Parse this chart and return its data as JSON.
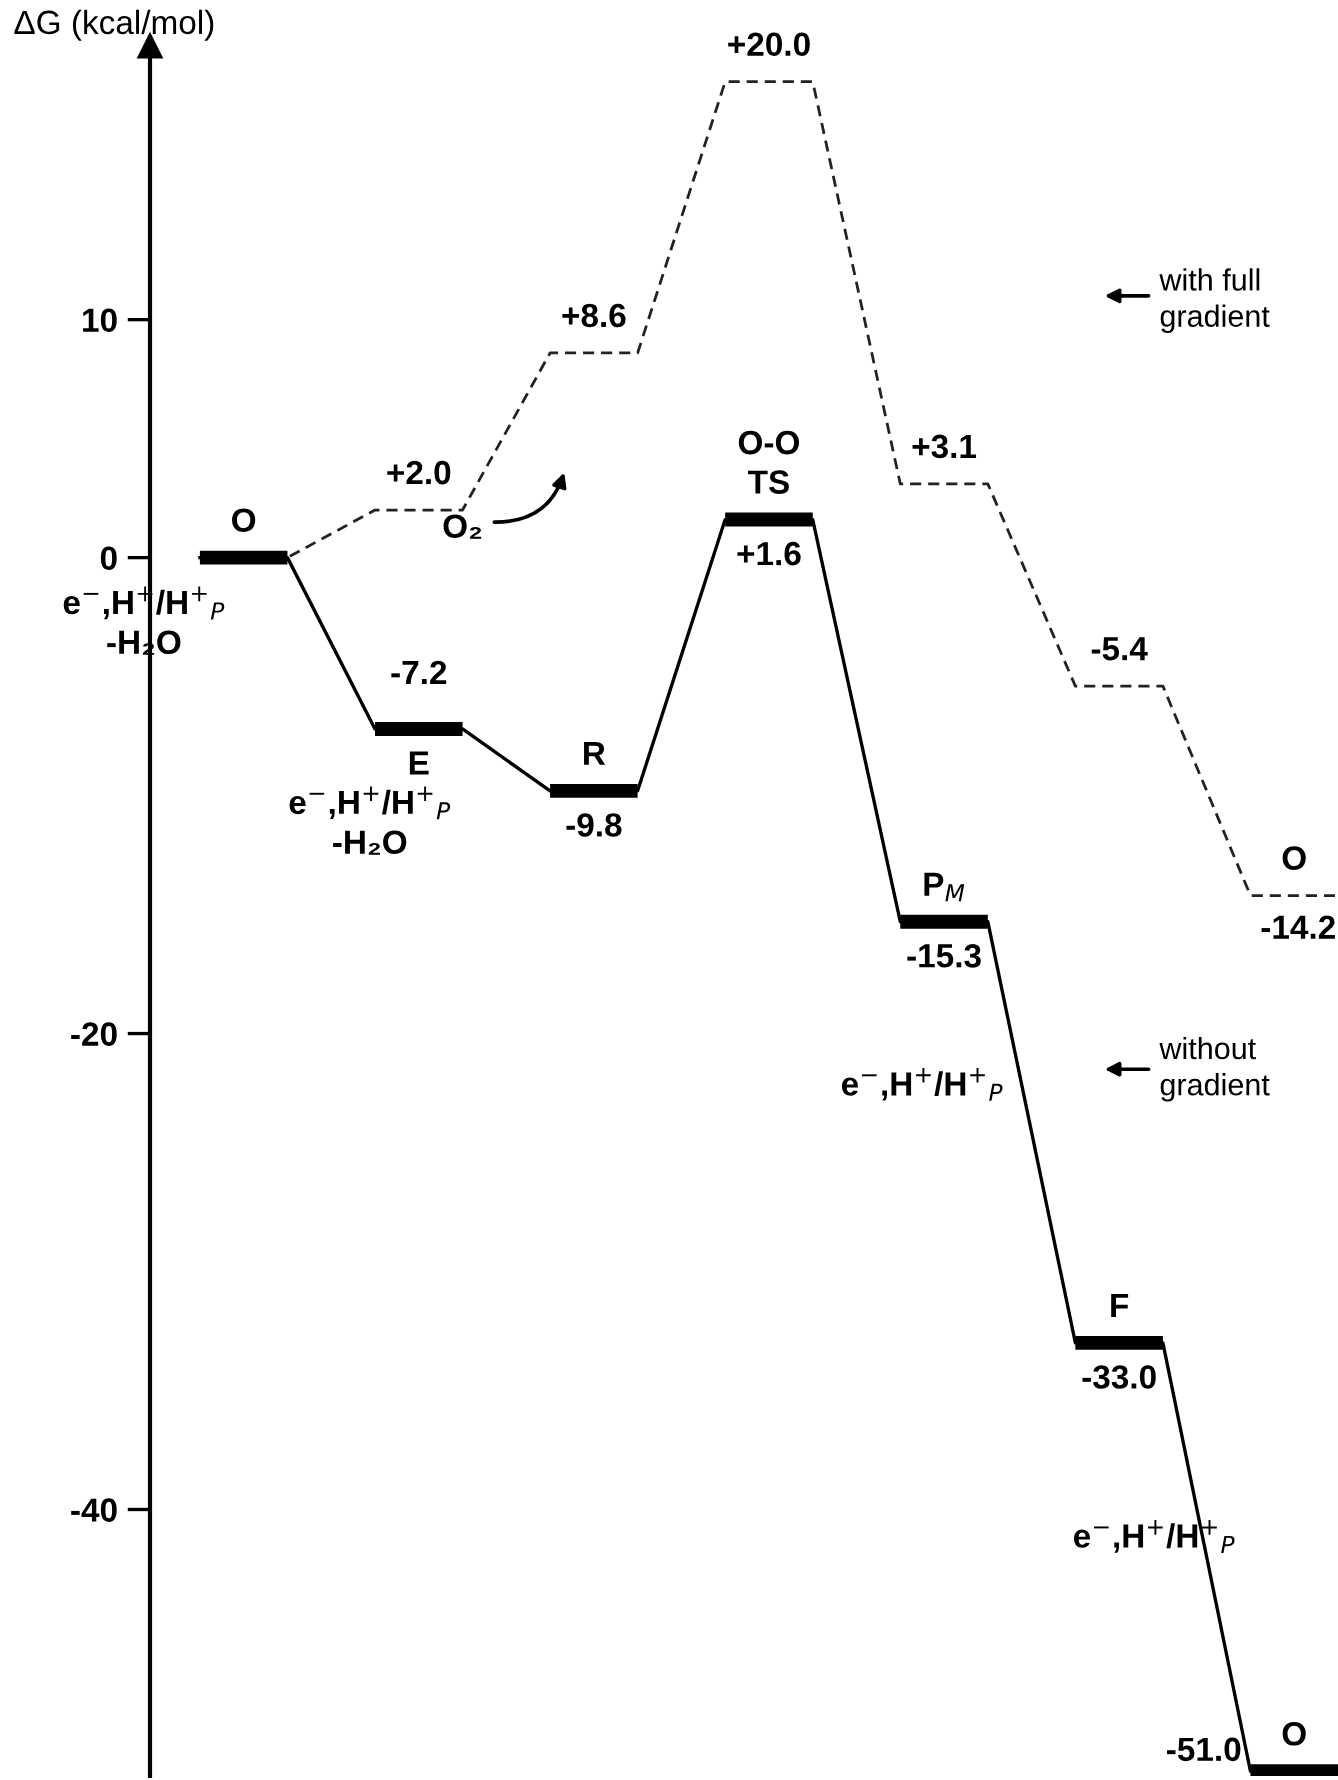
{
  "chart_data": {
    "type": "line",
    "ylabel": "ΔG (kcal/mol)",
    "categories": [
      null,
      null,
      null,
      null,
      null,
      null,
      null,
      null,
      null,
      null,
      null,
      null,
      null,
      null
    ],
    "series": [
      {
        "color": "#222222",
        "line_style": "dashed",
        "values": [
          0,
          0,
          2.0,
          2.0,
          8.6,
          8.6,
          20.0,
          20.0,
          3.1,
          3.1,
          -5.4,
          -5.4,
          -14.2,
          -14.2
        ],
        "value_labels": [
          null,
          null,
          null,
          "+2.0",
          null,
          "+8.6",
          null,
          "+20.0",
          null,
          "+3.1",
          null,
          "-5.4",
          null,
          "-14.2"
        ]
      },
      {
        "color": "#000000",
        "line_style": "solid",
        "values": [
          0,
          0,
          -7.2,
          -7.2,
          -9.8,
          -9.8,
          1.6,
          1.6,
          -15.3,
          -15.3,
          -33.0,
          -33.0,
          -51.0,
          -51.0
        ],
        "value_labels": [
          null,
          null,
          null,
          "-7.2",
          null,
          "-9.8",
          null,
          "+1.6",
          null,
          "-15.3",
          null,
          "-33.0",
          null,
          "-51.0"
        ]
      }
    ],
    "ylim": [
      -51.2,
      21.5
    ],
    "yticks": [
      -40,
      -20,
      0,
      10
    ],
    "grid": false,
    "legend": false,
    "annotations": [
      "O",
      "E",
      "R",
      "O-O\nTS",
      "P$_{M}$",
      "F",
      "O",
      "O",
      "e$^{−}$,H$^{+}$/H$^{+}$$_{P}$\n-H₂O",
      "e$^{−}$,H$^{+}$/H$^{+}$$_{P}$\n-H₂O",
      "O₂",
      "with full\ngradient",
      "without\ngradient",
      "e$^{−}$,H$^{+}$/H$^{+}$$_{P}$",
      "e$^{−}$,H$^{+}$/H$^{+}$$_{P}$"
    ]
  }
}
